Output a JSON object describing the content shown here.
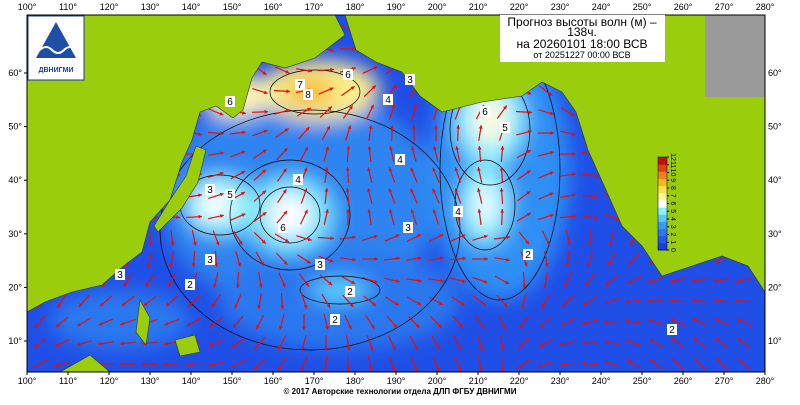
{
  "header": {
    "title_line1": "Прогноз высоты волн (м) –",
    "title_line2": "138ч.",
    "valid_time": "на 20260101 18:00 ВСВ",
    "issued": "от 20251227 00:00 ВСВ"
  },
  "logo": {
    "text": "ДВНИГМИ"
  },
  "footer": "© 2017 Авторские технологии отдела ДЛП ФГБУ ДВНИГМИ",
  "lon_ticks": [
    {
      "value": 100,
      "label": "100°"
    },
    {
      "value": 110,
      "label": "110°"
    },
    {
      "value": 120,
      "label": "120°"
    },
    {
      "value": 130,
      "label": "130°"
    },
    {
      "value": 140,
      "label": "140°"
    },
    {
      "value": 150,
      "label": "150°"
    },
    {
      "value": 160,
      "label": "160°"
    },
    {
      "value": 170,
      "label": "170°"
    },
    {
      "value": 180,
      "label": "180°"
    },
    {
      "value": 190,
      "label": "190°"
    },
    {
      "value": 200,
      "label": "200°"
    },
    {
      "value": 210,
      "label": "210°"
    },
    {
      "value": 220,
      "label": "220°"
    },
    {
      "value": 230,
      "label": "230°"
    },
    {
      "value": 240,
      "label": "240°"
    },
    {
      "value": 250,
      "label": "250°"
    },
    {
      "value": 260,
      "label": "260°"
    },
    {
      "value": 270,
      "label": "270°"
    },
    {
      "value": 280,
      "label": "280°"
    }
  ],
  "lat_ticks": [
    {
      "value": 10,
      "label": "10°"
    },
    {
      "value": 20,
      "label": "20°"
    },
    {
      "value": 30,
      "label": "30°"
    },
    {
      "value": 40,
      "label": "40°"
    },
    {
      "value": 50,
      "label": "50°"
    },
    {
      "value": 60,
      "label": "60°"
    }
  ],
  "colorbar_ticks": [
    0,
    1,
    2,
    3,
    4,
    5,
    6,
    7,
    8,
    9,
    10,
    11,
    12
  ],
  "contour_labels": [
    8,
    6,
    7,
    6,
    4,
    3,
    5,
    3,
    6,
    4,
    3,
    2,
    3,
    2,
    6,
    5,
    4,
    4,
    3,
    2,
    2,
    3,
    2
  ]
}
